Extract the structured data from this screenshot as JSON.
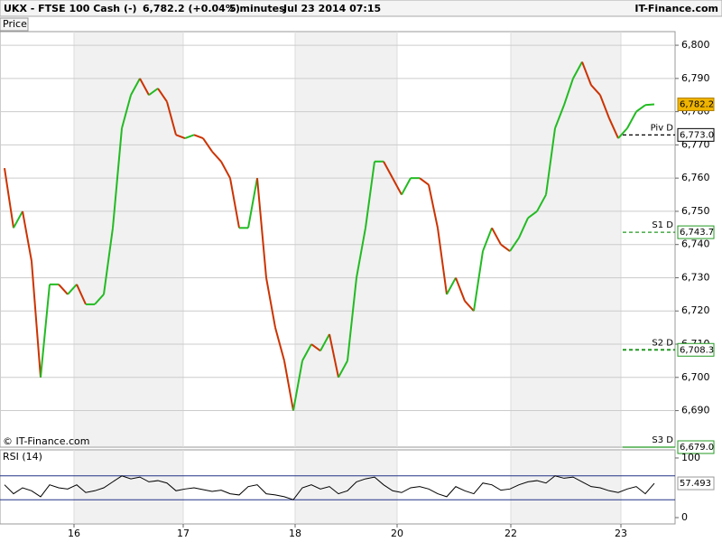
{
  "header": {
    "title": "UKX - FTSE 100 Cash (-)",
    "quote": "6,782.2 (+0.04%)",
    "interval": "5 minutes",
    "timestamp": "Jul 23 2014 07:15",
    "source": "IT-Finance.com"
  },
  "chart_data": [
    {
      "type": "line",
      "title": "Price",
      "copyright": "© IT-Finance.com",
      "values": [
        6763,
        6745,
        6750,
        6735,
        6700,
        6728,
        6728,
        6725,
        6728,
        6722,
        6722,
        6725,
        6745,
        6775,
        6785,
        6790,
        6785,
        6787,
        6783,
        6773,
        6772,
        6773,
        6772,
        6768,
        6765,
        6760,
        6745,
        6745,
        6760,
        6730,
        6715,
        6705,
        6690,
        6705,
        6710,
        6708,
        6713,
        6700,
        6705,
        6730,
        6745,
        6765,
        6765,
        6760,
        6755,
        6760,
        6760,
        6758,
        6745,
        6725,
        6730,
        6723,
        6720,
        6738,
        6745,
        6740,
        6738,
        6742,
        6748,
        6750,
        6755,
        6775,
        6782,
        6790,
        6795,
        6788,
        6785,
        6778,
        6772,
        6775,
        6780,
        6782,
        6782.2
      ],
      "up_color": "#22bb22",
      "down_color": "#cc3300",
      "xlim": [
        -0.5,
        74.3
      ],
      "xticks": [
        {
          "value": 7.7,
          "label": "16"
        },
        {
          "value": 19.8,
          "label": "17"
        },
        {
          "value": 32.2,
          "label": "18"
        },
        {
          "value": 43.5,
          "label": "20"
        },
        {
          "value": 56.1,
          "label": "22"
        },
        {
          "value": 68.3,
          "label": "23"
        }
      ],
      "ylim": [
        6679.0,
        6804.1
      ],
      "yticks": [
        {
          "value": 6690,
          "label": "6,690"
        },
        {
          "value": 6700,
          "label": "6,700"
        },
        {
          "value": 6710,
          "label": "6,710"
        },
        {
          "value": 6720,
          "label": "6,720"
        },
        {
          "value": 6730,
          "label": "6,730"
        },
        {
          "value": 6740,
          "label": "6,740"
        },
        {
          "value": 6750,
          "label": "6,750"
        },
        {
          "value": 6760,
          "label": "6,760"
        },
        {
          "value": 6770,
          "label": "6,770"
        },
        {
          "value": 6780,
          "label": "6,780"
        },
        {
          "value": 6790,
          "label": "6,790"
        },
        {
          "value": 6800,
          "label": "6,800"
        }
      ],
      "last_price": {
        "value": 6782.2,
        "label": "6,782.2"
      },
      "levels": [
        {
          "name": "Piv D",
          "value": 6773.0,
          "label": "6,773.0",
          "color": "#000000"
        },
        {
          "name": "S1 D",
          "value": 6743.7,
          "label": "6,743.7",
          "color": "#229922"
        },
        {
          "name": "S2 D",
          "value": 6708.3,
          "label": "6,708.3",
          "color": "#229922"
        },
        {
          "name": "S3 D",
          "value": 6679.0,
          "label": "6,679.0",
          "color": "#229922"
        }
      ],
      "grid": true
    },
    {
      "type": "line",
      "title": "RSI (14)",
      "color": "#000000",
      "values": [
        55,
        40,
        50,
        45,
        35,
        55,
        50,
        48,
        55,
        42,
        45,
        50,
        60,
        70,
        65,
        68,
        60,
        62,
        58,
        45,
        48,
        50,
        47,
        44,
        46,
        40,
        38,
        52,
        55,
        40,
        38,
        35,
        30,
        50,
        55,
        48,
        52,
        40,
        45,
        60,
        65,
        68,
        55,
        45,
        42,
        50,
        52,
        48,
        40,
        35,
        52,
        45,
        40,
        58,
        55,
        46,
        48,
        55,
        60,
        62,
        58,
        70,
        66,
        68,
        60,
        52,
        50,
        45,
        42,
        48,
        52,
        40,
        57.493
      ],
      "ylim": [
        -10.6,
        113.6
      ],
      "yticks": [
        0,
        100
      ],
      "levels": [
        30,
        70
      ]
    }
  ]
}
